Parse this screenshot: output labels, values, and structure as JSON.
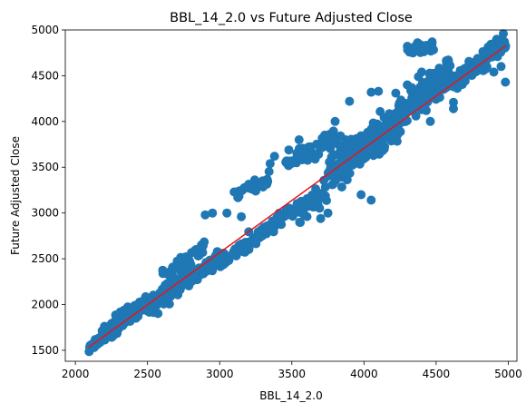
{
  "chart_data": {
    "type": "scatter",
    "title": "BBL_14_2.0 vs Future Adjusted Close",
    "xlabel": "BBL_14_2.0",
    "ylabel": "Future Adjusted Close",
    "xlim": [
      1930,
      5060
    ],
    "ylim": [
      1380,
      5000
    ],
    "xticks": [
      2000,
      2500,
      3000,
      3500,
      4000,
      4500,
      5000
    ],
    "yticks": [
      1500,
      2000,
      2500,
      3000,
      3500,
      4000,
      4500,
      5000
    ],
    "grid": false,
    "legend": "none",
    "point_color": "#1f77b4",
    "line_color": "#e8141a",
    "fit_line": {
      "x": [
        2090,
        4985
      ],
      "y": [
        1530,
        4830
      ]
    },
    "clusters": [
      {
        "x": [
          2090,
          2200
        ],
        "slope": 1.05,
        "offset": 0,
        "spread": 40,
        "n": 35
      },
      {
        "x": [
          2200,
          2500
        ],
        "slope": 1.05,
        "offset": 20,
        "spread": 80,
        "n": 140
      },
      {
        "x": [
          2500,
          2800
        ],
        "slope": 1.05,
        "offset": 0,
        "spread": 110,
        "n": 140
      },
      {
        "x": [
          2800,
          3000
        ],
        "slope": 1.05,
        "offset": -60,
        "spread": 60,
        "n": 60
      },
      {
        "x": [
          3000,
          3500
        ],
        "slope": 1.05,
        "offset": -120,
        "spread": 60,
        "n": 120
      },
      {
        "x": [
          3500,
          3750
        ],
        "slope": 1.05,
        "offset": -180,
        "spread": 80,
        "n": 60
      },
      {
        "x": [
          3750,
          4250
        ],
        "slope": 1.05,
        "offset": 0,
        "spread": 150,
        "n": 260
      },
      {
        "x": [
          4250,
          4600
        ],
        "slope": 1.05,
        "offset": 120,
        "spread": 140,
        "n": 130
      },
      {
        "x": [
          4600,
          4985
        ],
        "slope": 1.05,
        "offset": 20,
        "spread": 80,
        "n": 160
      },
      {
        "x": [
          3450,
          3850
        ],
        "slope": 0.6,
        "offset": 400,
        "spread": 90,
        "n": 60
      },
      {
        "x": [
          3120,
          3350
        ],
        "slope": 0.6,
        "offset": 450,
        "spread": 60,
        "n": 25
      },
      {
        "x": [
          2600,
          2900
        ],
        "slope": 1.05,
        "offset": 180,
        "spread": 60,
        "n": 35
      },
      {
        "x": [
          4300,
          4500
        ],
        "slope": 0.3,
        "offset": 650,
        "spread": 60,
        "n": 25
      }
    ],
    "outliers": [
      {
        "x": 2130,
        "y": 1530
      },
      {
        "x": 2150,
        "y": 1560
      },
      {
        "x": 2950,
        "y": 3000
      },
      {
        "x": 2900,
        "y": 2980
      },
      {
        "x": 3050,
        "y": 3000
      },
      {
        "x": 3150,
        "y": 2960
      },
      {
        "x": 3100,
        "y": 3230
      },
      {
        "x": 3250,
        "y": 3240
      },
      {
        "x": 3350,
        "y": 3540
      },
      {
        "x": 3380,
        "y": 3620
      },
      {
        "x": 3550,
        "y": 3800
      },
      {
        "x": 3800,
        "y": 4000
      },
      {
        "x": 3900,
        "y": 4220
      },
      {
        "x": 4100,
        "y": 4330
      },
      {
        "x": 4050,
        "y": 4320
      },
      {
        "x": 4220,
        "y": 4310
      },
      {
        "x": 4300,
        "y": 4400
      },
      {
        "x": 4050,
        "y": 3140
      },
      {
        "x": 3980,
        "y": 3200
      },
      {
        "x": 3700,
        "y": 2940
      },
      {
        "x": 3750,
        "y": 3000
      },
      {
        "x": 4550,
        "y": 4350
      },
      {
        "x": 4620,
        "y": 4210
      },
      {
        "x": 4620,
        "y": 4140
      },
      {
        "x": 4400,
        "y": 4130
      },
      {
        "x": 4460,
        "y": 4000
      },
      {
        "x": 4480,
        "y": 4400
      },
      {
        "x": 4800,
        "y": 4580
      },
      {
        "x": 4900,
        "y": 4540
      },
      {
        "x": 4980,
        "y": 4430
      },
      {
        "x": 4950,
        "y": 4600
      },
      {
        "x": 4720,
        "y": 4520
      },
      {
        "x": 4400,
        "y": 4540
      }
    ]
  }
}
